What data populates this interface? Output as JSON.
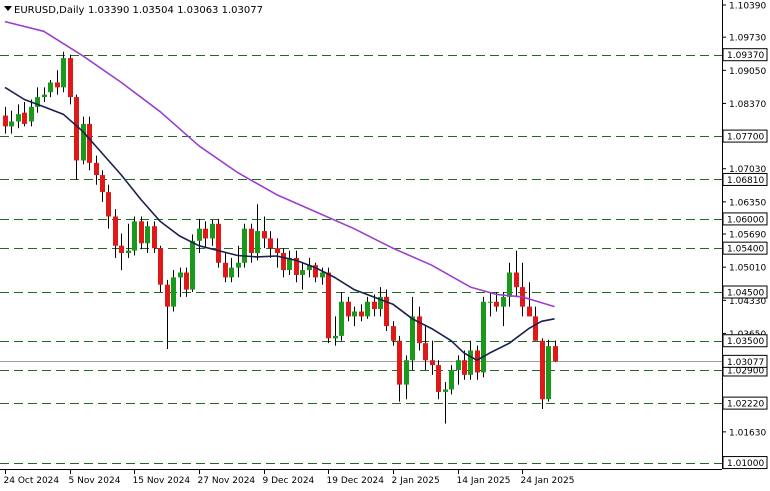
{
  "window": {
    "symbol_label": "EURUSD,Daily",
    "ohlc_label": "1.03390 1.03504 1.03063 1.03077"
  },
  "colors": {
    "background": "#ffffff",
    "bull": "#1a9a1a",
    "bear": "#e01818",
    "wick": "#000000",
    "level_line": "#1f6b1f",
    "ma_fast": "#1b1f4f",
    "ma_slow": "#9b3fd0",
    "grid_line": "#9e9e9e"
  },
  "chart_data": {
    "type": "candlestick",
    "symbol": "EURUSD",
    "timeframe": "Daily",
    "y_range": [
      1.0095,
      1.1039
    ],
    "y_ticks": [
      "1.10390",
      "1.09730",
      "1.09050",
      "1.08370",
      "1.07030",
      "1.06350",
      "1.05690",
      "1.05010",
      "1.04330",
      "1.03650",
      "1.01630"
    ],
    "x_ticks": [
      "24 Oct 2024",
      "5 Nov 2024",
      "15 Nov 2024",
      "27 Nov 2024",
      "9 Dec 2024",
      "19 Dec 2024",
      "2 Jan 2025",
      "14 Jan 2025",
      "24 Jan 2025"
    ],
    "current_price": 1.03077,
    "current_price_label": "1.03077",
    "levels": [
      {
        "value": 1.0937,
        "label": "1.09370"
      },
      {
        "value": 1.077,
        "label": "1.07700"
      },
      {
        "value": 1.0681,
        "label": "1.06810"
      },
      {
        "value": 1.06,
        "label": "1.06000"
      },
      {
        "value": 1.054,
        "label": "1.05400"
      },
      {
        "value": 1.045,
        "label": "1.04500"
      },
      {
        "value": 1.035,
        "label": "1.03500"
      },
      {
        "value": 1.029,
        "label": "1.02900"
      },
      {
        "value": 1.0222,
        "label": "1.02220"
      },
      {
        "value": 1.01,
        "label": "1.01000"
      }
    ],
    "candles": [
      {
        "o": 1.0812,
        "h": 1.083,
        "l": 1.0775,
        "c": 1.079
      },
      {
        "o": 1.079,
        "h": 1.0822,
        "l": 1.0775,
        "c": 1.08
      },
      {
        "o": 1.08,
        "h": 1.0835,
        "l": 1.0786,
        "c": 1.0815
      },
      {
        "o": 1.0818,
        "h": 1.084,
        "l": 1.079,
        "c": 1.0795
      },
      {
        "o": 1.08,
        "h": 1.0845,
        "l": 1.079,
        "c": 1.083
      },
      {
        "o": 1.083,
        "h": 1.087,
        "l": 1.0818,
        "c": 1.085
      },
      {
        "o": 1.085,
        "h": 1.087,
        "l": 1.084,
        "c": 1.0855
      },
      {
        "o": 1.086,
        "h": 1.0885,
        "l": 1.085,
        "c": 1.088
      },
      {
        "o": 1.088,
        "h": 1.0905,
        "l": 1.0855,
        "c": 1.087
      },
      {
        "o": 1.087,
        "h": 1.0943,
        "l": 1.086,
        "c": 1.093
      },
      {
        "o": 1.093,
        "h": 1.0937,
        "l": 1.0835,
        "c": 1.085
      },
      {
        "o": 1.085,
        "h": 1.0855,
        "l": 1.068,
        "c": 1.072
      },
      {
        "o": 1.072,
        "h": 1.081,
        "l": 1.0712,
        "c": 1.0795
      },
      {
        "o": 1.0795,
        "h": 1.081,
        "l": 1.07,
        "c": 1.0715
      },
      {
        "o": 1.0715,
        "h": 1.073,
        "l": 1.067,
        "c": 1.069
      },
      {
        "o": 1.069,
        "h": 1.07,
        "l": 1.0635,
        "c": 1.0655
      },
      {
        "o": 1.0655,
        "h": 1.067,
        "l": 1.058,
        "c": 1.0605
      },
      {
        "o": 1.0605,
        "h": 1.062,
        "l": 1.052,
        "c": 1.0545
      },
      {
        "o": 1.0545,
        "h": 1.057,
        "l": 1.0495,
        "c": 1.053
      },
      {
        "o": 1.053,
        "h": 1.059,
        "l": 1.052,
        "c": 1.0535
      },
      {
        "o": 1.0535,
        "h": 1.0605,
        "l": 1.0525,
        "c": 1.0595
      },
      {
        "o": 1.0595,
        "h": 1.0605,
        "l": 1.0538,
        "c": 1.055
      },
      {
        "o": 1.055,
        "h": 1.0595,
        "l": 1.053,
        "c": 1.0585
      },
      {
        "o": 1.0585,
        "h": 1.0595,
        "l": 1.053,
        "c": 1.054
      },
      {
        "o": 1.054,
        "h": 1.0545,
        "l": 1.045,
        "c": 1.0465
      },
      {
        "o": 1.0465,
        "h": 1.0475,
        "l": 1.0333,
        "c": 1.042
      },
      {
        "o": 1.042,
        "h": 1.0495,
        "l": 1.041,
        "c": 1.048
      },
      {
        "o": 1.048,
        "h": 1.05,
        "l": 1.044,
        "c": 1.049
      },
      {
        "o": 1.049,
        "h": 1.05,
        "l": 1.044,
        "c": 1.0455
      },
      {
        "o": 1.0455,
        "h": 1.0568,
        "l": 1.045,
        "c": 1.0555
      },
      {
        "o": 1.0555,
        "h": 1.06,
        "l": 1.053,
        "c": 1.058
      },
      {
        "o": 1.058,
        "h": 1.0595,
        "l": 1.054,
        "c": 1.056
      },
      {
        "o": 1.056,
        "h": 1.0598,
        "l": 1.0545,
        "c": 1.059
      },
      {
        "o": 1.059,
        "h": 1.06,
        "l": 1.05,
        "c": 1.051
      },
      {
        "o": 1.051,
        "h": 1.053,
        "l": 1.047,
        "c": 1.048
      },
      {
        "o": 1.048,
        "h": 1.052,
        "l": 1.047,
        "c": 1.05
      },
      {
        "o": 1.05,
        "h": 1.0545,
        "l": 1.048,
        "c": 1.051
      },
      {
        "o": 1.051,
        "h": 1.059,
        "l": 1.05,
        "c": 1.058
      },
      {
        "o": 1.058,
        "h": 1.059,
        "l": 1.051,
        "c": 1.053
      },
      {
        "o": 1.053,
        "h": 1.063,
        "l": 1.0515,
        "c": 1.0575
      },
      {
        "o": 1.0575,
        "h": 1.0605,
        "l": 1.054,
        "c": 1.056
      },
      {
        "o": 1.056,
        "h": 1.0575,
        "l": 1.052,
        "c": 1.054
      },
      {
        "o": 1.054,
        "h": 1.056,
        "l": 1.05,
        "c": 1.053
      },
      {
        "o": 1.053,
        "h": 1.054,
        "l": 1.048,
        "c": 1.0495
      },
      {
        "o": 1.0495,
        "h": 1.0535,
        "l": 1.0485,
        "c": 1.052
      },
      {
        "o": 1.052,
        "h": 1.0535,
        "l": 1.047,
        "c": 1.0485
      },
      {
        "o": 1.0485,
        "h": 1.051,
        "l": 1.0455,
        "c": 1.0495
      },
      {
        "o": 1.0495,
        "h": 1.052,
        "l": 1.048,
        "c": 1.0505
      },
      {
        "o": 1.0505,
        "h": 1.051,
        "l": 1.047,
        "c": 1.048
      },
      {
        "o": 1.048,
        "h": 1.05,
        "l": 1.0465,
        "c": 1.049
      },
      {
        "o": 1.049,
        "h": 1.05,
        "l": 1.0345,
        "c": 1.0355
      },
      {
        "o": 1.0355,
        "h": 1.04,
        "l": 1.034,
        "c": 1.036
      },
      {
        "o": 1.036,
        "h": 1.045,
        "l": 1.035,
        "c": 1.043
      },
      {
        "o": 1.043,
        "h": 1.044,
        "l": 1.039,
        "c": 1.04
      },
      {
        "o": 1.04,
        "h": 1.042,
        "l": 1.038,
        "c": 1.041
      },
      {
        "o": 1.041,
        "h": 1.0425,
        "l": 1.039,
        "c": 1.04
      },
      {
        "o": 1.04,
        "h": 1.044,
        "l": 1.0395,
        "c": 1.043
      },
      {
        "o": 1.043,
        "h": 1.0445,
        "l": 1.04,
        "c": 1.0415
      },
      {
        "o": 1.0415,
        "h": 1.046,
        "l": 1.04,
        "c": 1.044
      },
      {
        "o": 1.044,
        "h": 1.0455,
        "l": 1.037,
        "c": 1.038
      },
      {
        "o": 1.038,
        "h": 1.039,
        "l": 1.034,
        "c": 1.035
      },
      {
        "o": 1.035,
        "h": 1.036,
        "l": 1.0225,
        "c": 1.026
      },
      {
        "o": 1.026,
        "h": 1.032,
        "l": 1.023,
        "c": 1.031
      },
      {
        "o": 1.031,
        "h": 1.044,
        "l": 1.029,
        "c": 1.04
      },
      {
        "o": 1.04,
        "h": 1.042,
        "l": 1.033,
        "c": 1.0345
      },
      {
        "o": 1.0345,
        "h": 1.038,
        "l": 1.029,
        "c": 1.031
      },
      {
        "o": 1.031,
        "h": 1.035,
        "l": 1.028,
        "c": 1.03
      },
      {
        "o": 1.03,
        "h": 1.031,
        "l": 1.023,
        "c": 1.0245
      },
      {
        "o": 1.0245,
        "h": 1.0265,
        "l": 1.018,
        "c": 1.025
      },
      {
        "o": 1.025,
        "h": 1.03,
        "l": 1.024,
        "c": 1.029
      },
      {
        "o": 1.029,
        "h": 1.032,
        "l": 1.026,
        "c": 1.031
      },
      {
        "o": 1.031,
        "h": 1.033,
        "l": 1.027,
        "c": 1.028
      },
      {
        "o": 1.028,
        "h": 1.035,
        "l": 1.027,
        "c": 1.033
      },
      {
        "o": 1.033,
        "h": 1.034,
        "l": 1.027,
        "c": 1.0285
      },
      {
        "o": 1.0285,
        "h": 1.044,
        "l": 1.0275,
        "c": 1.043
      },
      {
        "o": 1.043,
        "h": 1.045,
        "l": 1.04,
        "c": 1.043
      },
      {
        "o": 1.043,
        "h": 1.045,
        "l": 1.041,
        "c": 1.042
      },
      {
        "o": 1.042,
        "h": 1.045,
        "l": 1.038,
        "c": 1.044
      },
      {
        "o": 1.044,
        "h": 1.051,
        "l": 1.042,
        "c": 1.049
      },
      {
        "o": 1.049,
        "h": 1.0535,
        "l": 1.044,
        "c": 1.046
      },
      {
        "o": 1.046,
        "h": 1.051,
        "l": 1.04,
        "c": 1.042
      },
      {
        "o": 1.042,
        "h": 1.047,
        "l": 1.04,
        "c": 1.04
      },
      {
        "o": 1.04,
        "h": 1.042,
        "l": 1.035,
        "c": 1.035
      },
      {
        "o": 1.035,
        "h": 1.0355,
        "l": 1.021,
        "c": 1.023
      },
      {
        "o": 1.023,
        "h": 1.0352,
        "l": 1.0225,
        "c": 1.0339
      },
      {
        "o": 1.0339,
        "h": 1.03504,
        "l": 1.03063,
        "c": 1.03077
      }
    ],
    "ma_fast": [
      [
        0,
        1.087
      ],
      [
        3,
        1.0845
      ],
      [
        6,
        1.083
      ],
      [
        9,
        1.0815
      ],
      [
        12,
        1.078
      ],
      [
        15,
        1.0735
      ],
      [
        18,
        1.069
      ],
      [
        21,
        1.064
      ],
      [
        24,
        1.0595
      ],
      [
        27,
        1.0565
      ],
      [
        30,
        1.0545
      ],
      [
        33,
        1.0535
      ],
      [
        36,
        1.0525
      ],
      [
        39,
        1.0522
      ],
      [
        42,
        1.0524
      ],
      [
        45,
        1.0515
      ],
      [
        48,
        1.05
      ],
      [
        51,
        1.048
      ],
      [
        54,
        1.0455
      ],
      [
        57,
        1.044
      ],
      [
        60,
        1.0425
      ],
      [
        63,
        1.0395
      ],
      [
        66,
        1.0375
      ],
      [
        69,
        1.035
      ],
      [
        71,
        1.0325
      ],
      [
        73,
        1.031
      ],
      [
        75,
        1.0325
      ],
      [
        78,
        1.0345
      ],
      [
        81,
        1.0375
      ],
      [
        83,
        1.039
      ],
      [
        85,
        1.0395
      ]
    ],
    "ma_slow": [
      [
        0,
        1.1005
      ],
      [
        6,
        1.0985
      ],
      [
        12,
        1.0935
      ],
      [
        18,
        1.088
      ],
      [
        24,
        1.082
      ],
      [
        30,
        1.075
      ],
      [
        36,
        1.0695
      ],
      [
        42,
        1.065
      ],
      [
        48,
        1.0615
      ],
      [
        54,
        1.058
      ],
      [
        60,
        1.054
      ],
      [
        66,
        1.0505
      ],
      [
        72,
        1.046
      ],
      [
        76,
        1.0445
      ],
      [
        80,
        1.044
      ],
      [
        85,
        1.042
      ]
    ]
  }
}
